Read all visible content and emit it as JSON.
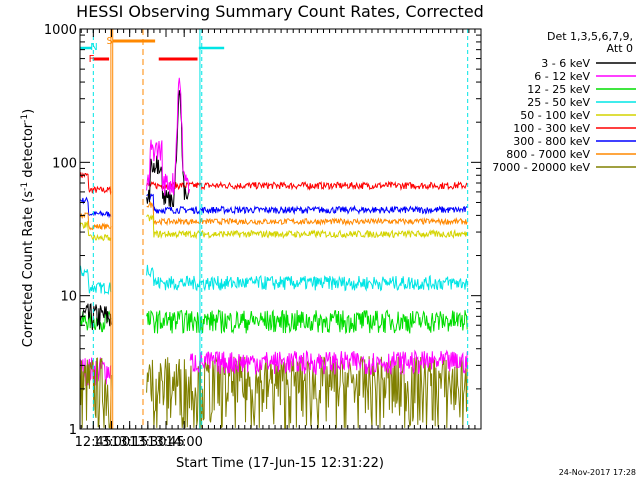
{
  "chart_data": {
    "type": "line",
    "title": "HESSI Observing Summary Count Rates, Corrected",
    "xlabel": "Start Time (17-Jun-15 12:31:22)",
    "ylabel_main": "Corrected Count Rate (s",
    "ylabel_sup1": "-1",
    "ylabel_mid": " detector",
    "ylabel_sup2": "-1",
    "ylabel_end": ")",
    "yscale": "log",
    "ylim": [
      1,
      1000
    ],
    "xlim_minutes": [
      754.0,
      1085.0
    ],
    "x_ticks": [
      {
        "label": "12:45",
        "min": 765
      },
      {
        "label": "13:00",
        "min": 780
      },
      {
        "label": "13:15",
        "min": 795
      },
      {
        "label": "13:30",
        "min": 810
      },
      {
        "label": "13:45",
        "min": 825
      },
      {
        "label": "14:00",
        "min": 840
      }
    ],
    "y_ticks": [
      {
        "label": "1",
        "value": 1
      },
      {
        "label": "10",
        "value": 10
      },
      {
        "label": "100",
        "value": 100
      },
      {
        "label": "1000",
        "value": 1000
      }
    ],
    "legend_header": [
      "Det 1,3,5,6,7,9,",
      "Att 0"
    ],
    "legend_position": "right",
    "series": [
      {
        "name": "3 - 6 keV",
        "color": "#000000"
      },
      {
        "name": "6 - 12 keV",
        "color": "#ff00ff"
      },
      {
        "name": "12 - 25 keV",
        "color": "#00dd00"
      },
      {
        "name": "25 - 50 keV",
        "color": "#00e5e5"
      },
      {
        "name": "50 - 100 keV",
        "color": "#d4d400"
      },
      {
        "name": "100 - 300 keV",
        "color": "#ff0000"
      },
      {
        "name": "300 - 800 keV",
        "color": "#0000ff"
      },
      {
        "name": "800 - 7000 keV",
        "color": "#ff8800"
      },
      {
        "name": "7000 - 20000 keV",
        "color": "#808000"
      }
    ],
    "flags": [
      {
        "label": "N",
        "color": "#00e5e5"
      },
      {
        "label": "F",
        "color": "#ff0000"
      },
      {
        "label": "S",
        "color": "#ff8800"
      }
    ],
    "footer_date": "24-Nov-2017 17:28"
  }
}
